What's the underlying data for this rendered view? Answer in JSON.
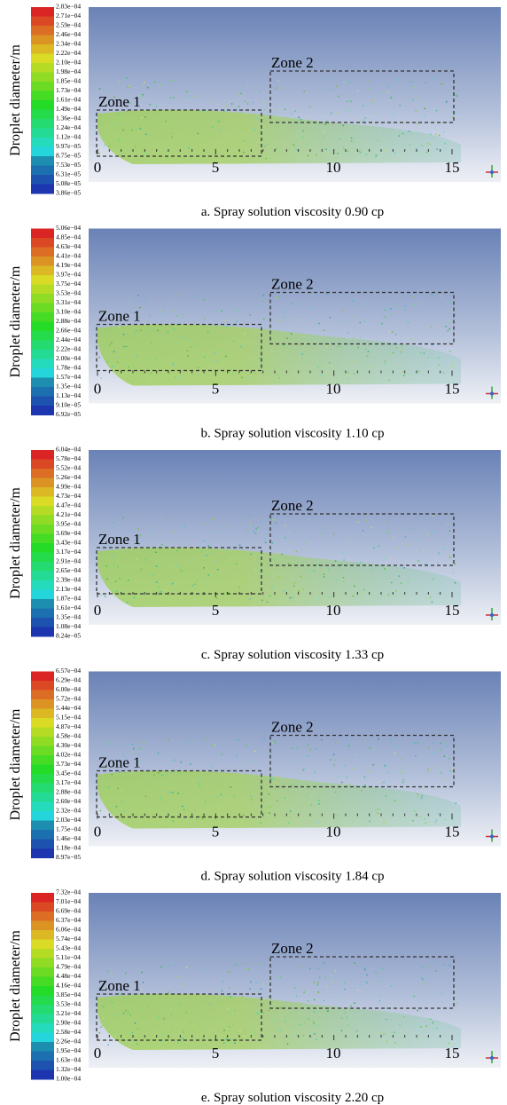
{
  "panels": [
    {
      "colorbar_labels": [
        "2.83e−04",
        "2.71e−04",
        "2.59e−04",
        "2.46e−04",
        "2.34e−04",
        "2.22e−04",
        "2.10e−04",
        "1.98e−04",
        "1.85e−04",
        "1.73e−04",
        "1.61e−04",
        "1.49e−04",
        "1.36e−04",
        "1.24e−04",
        "1.12e−04",
        "9.97e−05",
        "8.75e−05",
        "7.53e−05",
        "6.31e−05",
        "5.08e−05",
        "3.86e−05"
      ],
      "y_label": "Droplet diameter/m",
      "zones": [
        "Zone 1",
        "Zone 2"
      ],
      "x_ticks": [
        0,
        5,
        10,
        15
      ],
      "caption": "a. Spray solution viscosity 0.90 cp"
    },
    {
      "colorbar_labels": [
        "5.06e−04",
        "4.85e−04",
        "4.63e−04",
        "4.41e−04",
        "4.19e−04",
        "3.97e−04",
        "3.75e−04",
        "3.53e−04",
        "3.31e−04",
        "3.10e−04",
        "2.88e−04",
        "2.66e−04",
        "2.44e−04",
        "2.22e−04",
        "2.00e−04",
        "1.78e−04",
        "1.57e−04",
        "1.35e−04",
        "1.13e−04",
        "9.10e−05",
        "6.92e−05"
      ],
      "y_label": "Droplet diameter/m",
      "zones": [
        "Zone 1",
        "Zone 2"
      ],
      "x_ticks": [
        0,
        5,
        10,
        15
      ],
      "caption": "b. Spray solution viscosity 1.10 cp"
    },
    {
      "colorbar_labels": [
        "6.04e−04",
        "5.78e−04",
        "5.52e−04",
        "5.26e−04",
        "4.99e−04",
        "4.73e−04",
        "4.47e−04",
        "4.21e−04",
        "3.95e−04",
        "3.69e−04",
        "3.43e−04",
        "3.17e−04",
        "2.91e−04",
        "2.65e−04",
        "2.39e−04",
        "2.13e−04",
        "1.87e−04",
        "1.61e−04",
        "1.35e−04",
        "1.08e−04",
        "8.24e−05"
      ],
      "y_label": "Droplet diameter/m",
      "zones": [
        "Zone 1",
        "Zone 2"
      ],
      "x_ticks": [
        0,
        5,
        10,
        15
      ],
      "caption": "c. Spray solution viscosity 1.33 cp"
    },
    {
      "colorbar_labels": [
        "6.57e−04",
        "6.29e−04",
        "6.00e−04",
        "5.72e−04",
        "5.44e−04",
        "5.15e−04",
        "4.87e−04",
        "4.58e−04",
        "4.30e−04",
        "4.02e−04",
        "3.73e−04",
        "3.45e−04",
        "3.17e−04",
        "2.88e−04",
        "2.60e−04",
        "2.32e−04",
        "2.03e−04",
        "1.75e−04",
        "1.46e−04",
        "1.18e−04",
        "8.97e−05"
      ],
      "y_label": "Droplet diameter/m",
      "zones": [
        "Zone 1",
        "Zone 2"
      ],
      "x_ticks": [
        0,
        5,
        10,
        15
      ],
      "caption": "d. Spray solution viscosity 1.84 cp"
    },
    {
      "colorbar_labels": [
        "7.32e−04",
        "7.01e−04",
        "6.69e−04",
        "6.37e−04",
        "6.06e−04",
        "5.74e−04",
        "5.43e−04",
        "5.11e−04",
        "4.79e−04",
        "4.48e−04",
        "4.16e−04",
        "3.85e−04",
        "3.53e−04",
        "3.21e−04",
        "2.90e−04",
        "2.58e−04",
        "2.26e−04",
        "1.95e−04",
        "1.63e−04",
        "1.32e−04",
        "1.00e−04"
      ],
      "y_label": "Droplet diameter/m",
      "zones": [
        "Zone 1",
        "Zone 2"
      ],
      "x_ticks": [
        0,
        5,
        10,
        15
      ],
      "caption": "e. Spray solution viscosity 2.20 cp"
    }
  ]
}
